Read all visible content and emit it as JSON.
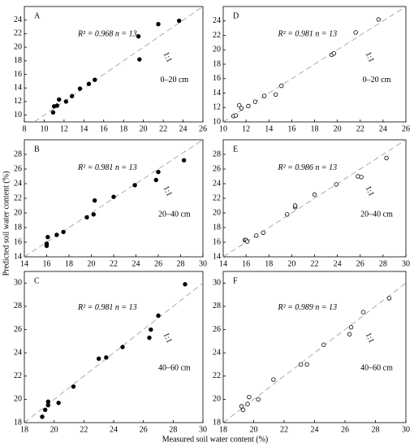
{
  "x_label": "Measured soil water content (%)",
  "y_label": "Predicted soil water content (%)",
  "chart_data": [
    {
      "type": "scatter",
      "panel": "A",
      "stat": "R² = 0.968   n = 13",
      "ref_label": "1:1",
      "depth": "0–20 cm",
      "marker": "filled",
      "color": "#000000",
      "x": [
        10.9,
        11,
        11.3,
        11.5,
        12.2,
        12.8,
        13.6,
        14.5,
        15.1,
        19.5,
        19.6,
        21.5,
        23.6
      ],
      "values": [
        10.4,
        11.3,
        11.4,
        12.3,
        12,
        12.8,
        13.9,
        14.6,
        15.2,
        21.6,
        18.2,
        23.4,
        23.9
      ],
      "xlim": [
        8,
        26
      ],
      "xticks": [
        8,
        10,
        12,
        14,
        16,
        18,
        20,
        22,
        24,
        26
      ],
      "ylim": [
        9,
        26
      ],
      "yticks": [
        10,
        12,
        14,
        16,
        18,
        20,
        22,
        24
      ]
    },
    {
      "type": "scatter",
      "panel": "D",
      "stat": "R² = 0.981   n = 13",
      "ref_label": "1:1",
      "depth": "0–20 cm",
      "marker": "open",
      "color": "#000000",
      "x": [
        10.9,
        11.1,
        11.4,
        11.6,
        12.2,
        12.8,
        13.6,
        14.6,
        15.1,
        19.5,
        19.7,
        21.6,
        23.6
      ],
      "values": [
        10.8,
        10.9,
        12.3,
        11.9,
        12.2,
        12.8,
        13.6,
        13.8,
        15,
        19.3,
        19.5,
        22.4,
        24.2
      ],
      "xlim": [
        10,
        26
      ],
      "xticks": [
        10,
        12,
        14,
        16,
        18,
        20,
        22,
        24,
        26
      ],
      "ylim": [
        10,
        26
      ],
      "yticks": [
        10,
        12,
        14,
        16,
        18,
        20,
        22,
        24
      ]
    },
    {
      "type": "scatter",
      "panel": "B",
      "stat": "R² = 0.981   n = 13",
      "ref_label": "1:1",
      "depth": "20–40 cm",
      "marker": "filled",
      "color": "#000000",
      "x": [
        16,
        16,
        16.1,
        16.9,
        17.5,
        19.6,
        20.2,
        20.3,
        22,
        23.9,
        25.8,
        26,
        28.3
      ],
      "values": [
        15.8,
        15.5,
        16.7,
        17,
        17.4,
        19.4,
        19.8,
        21.7,
        22.2,
        23.8,
        24.5,
        25.6,
        27.2
      ],
      "xlim": [
        14,
        30
      ],
      "xticks": [
        14,
        16,
        18,
        20,
        22,
        24,
        26,
        28,
        30
      ],
      "ylim": [
        14,
        30
      ],
      "yticks": [
        14,
        16,
        18,
        20,
        22,
        24,
        26,
        28
      ]
    },
    {
      "type": "scatter",
      "panel": "E",
      "stat": "R² = 0.986   n = 13",
      "ref_label": "1:1",
      "depth": "20–40 cm",
      "marker": "open",
      "color": "#000000",
      "x": [
        15.9,
        16,
        16.1,
        16.9,
        17.5,
        19.6,
        20.3,
        20.3,
        22,
        23.9,
        25.8,
        26.1,
        28.3
      ],
      "values": [
        16.3,
        16.3,
        16.1,
        16.9,
        17.3,
        19.8,
        20.8,
        21,
        22.5,
        23.9,
        25,
        24.9,
        27.5
      ],
      "xlim": [
        14,
        30
      ],
      "xticks": [
        14,
        16,
        18,
        20,
        22,
        24,
        26,
        28,
        30
      ],
      "ylim": [
        14,
        30
      ],
      "yticks": [
        14,
        16,
        18,
        20,
        22,
        24,
        26,
        28
      ]
    },
    {
      "type": "scatter",
      "panel": "C",
      "stat": "R² = 0.981   n = 13",
      "ref_label": "1:1",
      "depth": "40–60 cm",
      "marker": "filled",
      "color": "#000000",
      "x": [
        19.2,
        19.4,
        19.6,
        19.6,
        20.3,
        21.3,
        23,
        23.5,
        24.6,
        26.4,
        26.5,
        27,
        28.8
      ],
      "values": [
        18.5,
        19.1,
        19.5,
        19.8,
        19.7,
        21.1,
        23.5,
        23.6,
        24.5,
        25.3,
        26,
        27.2,
        29.9
      ],
      "xlim": [
        18,
        30
      ],
      "xticks": [
        18,
        20,
        22,
        24,
        26,
        28,
        30
      ],
      "ylim": [
        18,
        31
      ],
      "yticks": [
        18,
        20,
        22,
        24,
        26,
        28,
        30
      ]
    },
    {
      "type": "scatter",
      "panel": "F",
      "stat": "R² = 0.989   n = 13",
      "ref_label": "1:1",
      "depth": "40–60 cm",
      "marker": "open",
      "color": "#000000",
      "x": [
        19.2,
        19.3,
        19.6,
        19.7,
        20.3,
        21.3,
        23.1,
        23.5,
        24.6,
        26.3,
        26.4,
        27.2,
        28.9
      ],
      "values": [
        19.4,
        19.1,
        19.6,
        20.2,
        20,
        21.7,
        23,
        23,
        24.7,
        25.6,
        26.2,
        27.5,
        28.7
      ],
      "xlim": [
        18,
        30
      ],
      "xticks": [
        18,
        20,
        22,
        24,
        26,
        28,
        30
      ],
      "ylim": [
        18,
        31
      ],
      "yticks": [
        18,
        20,
        22,
        24,
        26,
        28,
        30
      ]
    }
  ]
}
